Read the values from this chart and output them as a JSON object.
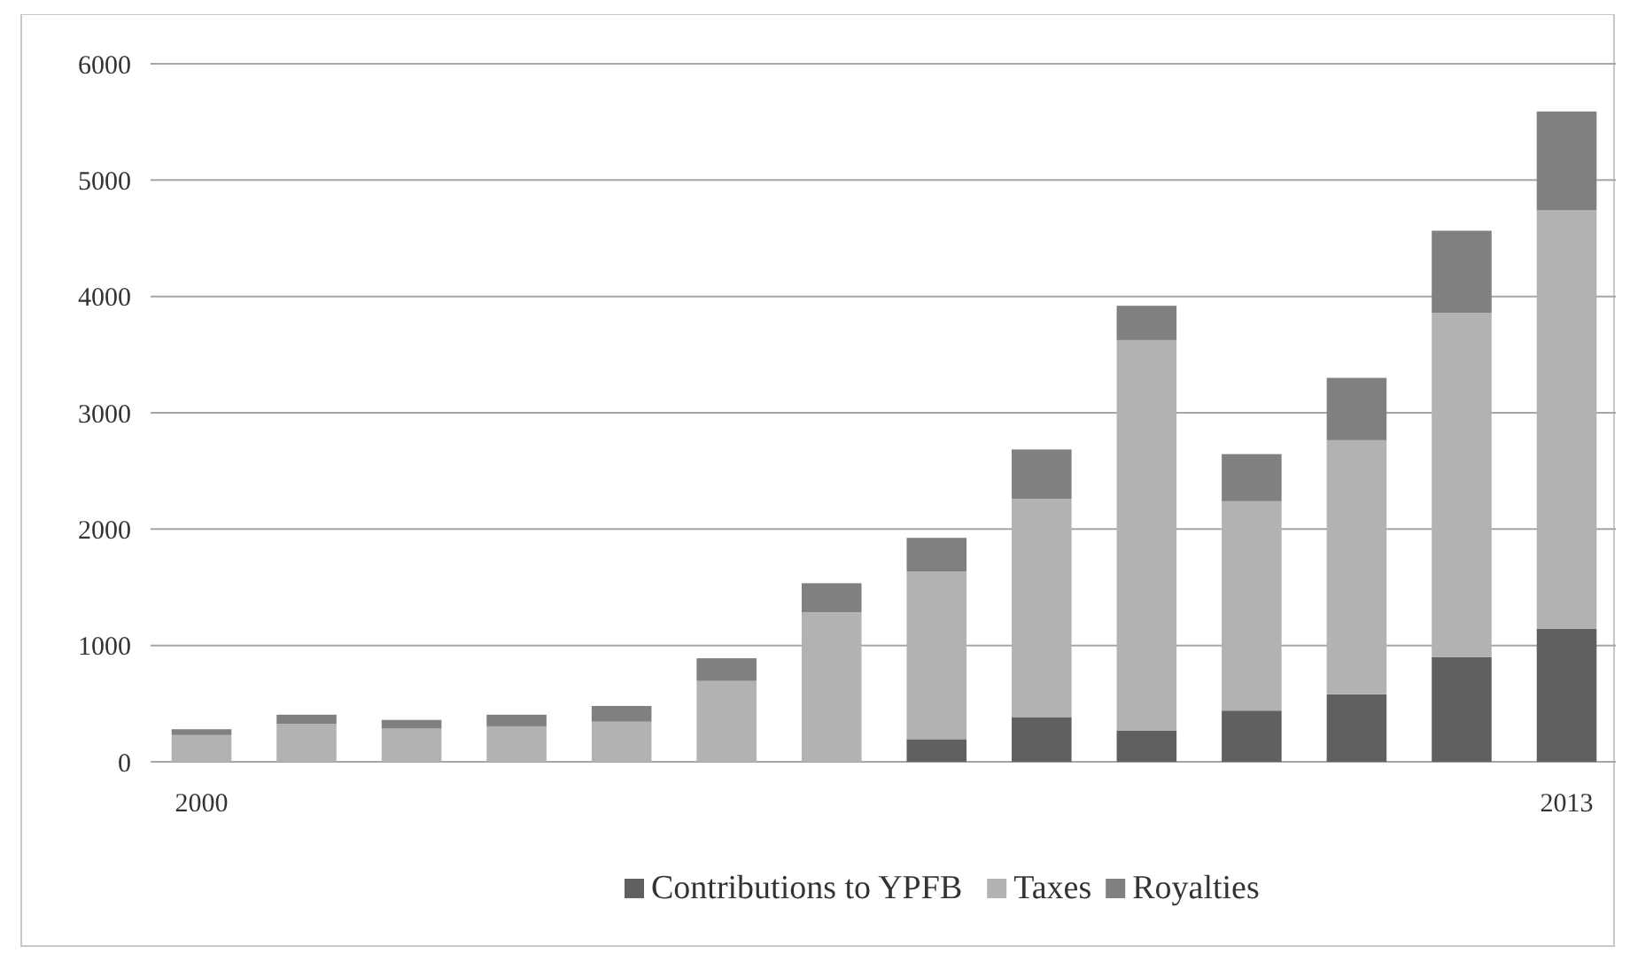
{
  "chart_data": {
    "type": "bar",
    "stacked": true,
    "categories": [
      "2000",
      null,
      null,
      null,
      null,
      null,
      null,
      null,
      null,
      null,
      null,
      null,
      null,
      "2013"
    ],
    "series": [
      {
        "name": "Contributions to YPFB",
        "color": "#606060",
        "values": [
          0,
          0,
          0,
          0,
          0,
          0,
          0,
          195,
          385,
          270,
          440,
          580,
          900,
          1145
        ]
      },
      {
        "name": "Taxes",
        "color": "#b2b2b2",
        "values": [
          230,
          325,
          285,
          305,
          345,
          695,
          1285,
          1440,
          1875,
          3355,
          1800,
          2185,
          2960,
          3595
        ]
      },
      {
        "name": "Royalties",
        "color": "#808080",
        "values": [
          50,
          80,
          75,
          100,
          135,
          195,
          250,
          290,
          425,
          295,
          405,
          535,
          705,
          850
        ]
      }
    ],
    "ylim": [
      0,
      6000
    ],
    "yticks": [
      0,
      1000,
      2000,
      3000,
      4000,
      5000,
      6000
    ],
    "grid": "y",
    "legend": "bottom"
  }
}
